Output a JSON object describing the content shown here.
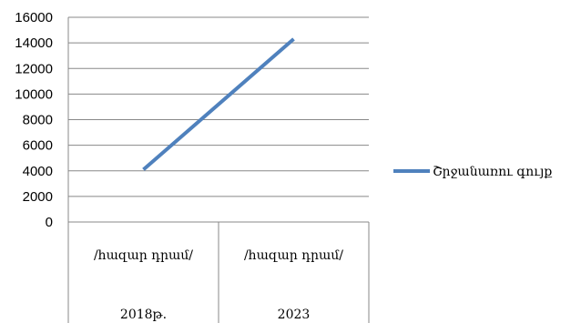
{
  "chart_data": {
    "type": "line",
    "title": "",
    "xlabel": "",
    "ylabel": "",
    "ylim": [
      0,
      16000
    ],
    "yticks": [
      "0",
      "2000",
      "4000",
      "6000",
      "8000",
      "10000",
      "12000",
      "14000",
      "16000"
    ],
    "grid": true,
    "legend_position": "right",
    "categories": [
      {
        "unit": "/հազար դրամ/",
        "year": "2018թ."
      },
      {
        "unit": "/հազար դրամ/",
        "year": "2023"
      }
    ],
    "series": [
      {
        "name": "Շրջանառու գույք",
        "color": "#4F81BD",
        "values": [
          4100,
          14300
        ]
      }
    ]
  }
}
